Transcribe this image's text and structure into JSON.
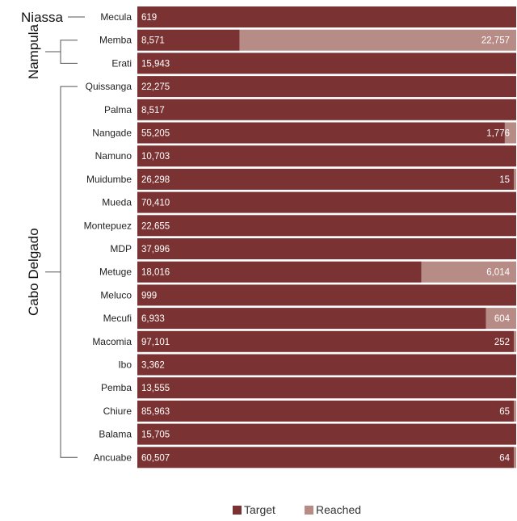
{
  "chart_data": {
    "type": "bar",
    "orientation": "horizontal",
    "stacked": true,
    "categories": [
      "Mecula",
      "Memba",
      "Erati",
      "Quissanga",
      "Palma",
      "Nangade",
      "Namuno",
      "Muidumbe",
      "Mueda",
      "Montepuez",
      "MDP",
      "Metuge",
      "Meluco",
      "Mecufi",
      "Macomia",
      "Ibo",
      "Pemba",
      "Chiure",
      "Balama",
      "Ancuabe"
    ],
    "series": [
      {
        "name": "Target",
        "color": "#7b3232",
        "values": [
          619,
          8571,
          15943,
          22275,
          8517,
          55205,
          10703,
          26298,
          70410,
          22655,
          37996,
          18016,
          999,
          6933,
          97101,
          3362,
          13555,
          85963,
          15705,
          60507
        ]
      },
      {
        "name": "Reached",
        "color": "#b88c86",
        "values": [
          null,
          22757,
          null,
          null,
          null,
          1776,
          null,
          15,
          null,
          null,
          null,
          6014,
          null,
          604,
          252,
          null,
          null,
          65,
          null,
          64
        ]
      }
    ],
    "value_labels": {
      "target": [
        "619",
        "8,571",
        "15,943",
        "22,275",
        "8,517",
        "55,205",
        "10,703",
        "26,298",
        "70,410",
        "22,655",
        "37,996",
        "18,016",
        "999",
        "6,933",
        "97,101",
        "3,362",
        "13,555",
        "85,963",
        "15,705",
        "60,507"
      ],
      "reached": [
        "",
        "22,757",
        "",
        "",
        "",
        "1,776",
        "",
        "15",
        "",
        "",
        "",
        "6,014",
        "",
        "604",
        "252",
        "",
        "",
        "65",
        "",
        "64"
      ]
    },
    "reached_share": [
      0,
      0.73,
      0,
      0,
      0,
      0.03,
      0,
      0.005,
      0,
      0,
      0,
      0.25,
      0,
      0.08,
      0.005,
      0,
      0,
      0.005,
      0,
      0.005
    ],
    "groups": [
      {
        "name": "Niassa",
        "rows": [
          0,
          0
        ]
      },
      {
        "name": "Nampula",
        "rows": [
          1,
          2
        ]
      },
      {
        "name": "Cabo Delgado",
        "rows": [
          3,
          19
        ]
      }
    ],
    "legend": {
      "placement": "bottom-center",
      "entries": [
        "Target",
        "Reached"
      ]
    },
    "grid": false
  },
  "side_fragment": {
    "lines": [
      "n",
      "n"
    ],
    "color": "#777777"
  }
}
